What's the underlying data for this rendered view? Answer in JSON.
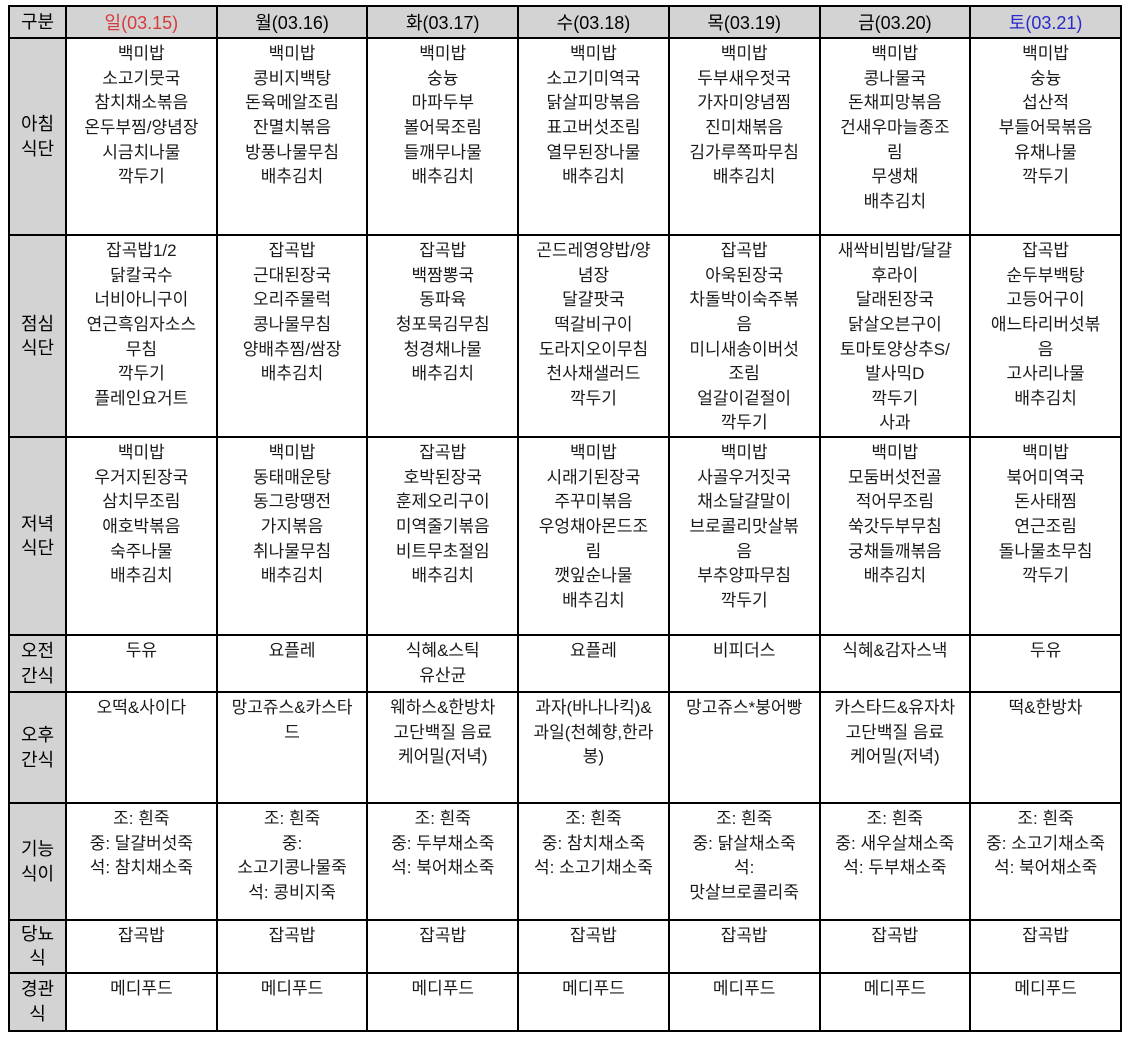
{
  "colors": {
    "sunday_header": "#d43c3c",
    "saturday_header": "#2929cc",
    "header_background": "#d3d3d3",
    "border": "#000000"
  },
  "table": {
    "corner": "구분",
    "day_headers": [
      "일(03.15)",
      "월(03.16)",
      "화(03.17)",
      "수(03.18)",
      "목(03.19)",
      "금(03.20)",
      "토(03.21)"
    ],
    "rows": [
      {
        "label": "아침\n식단",
        "cells": [
          "백미밥\n소고기뭇국\n참치채소볶음\n온두부찜/양념장\n시금치나물\n깍두기",
          "백미밥\n콩비지백탕\n돈육메알조림\n잔멸치볶음\n방풍나물무침\n배추김치",
          "백미밥\n숭늉\n마파두부\n볼어묵조림\n들깨무나물\n배추김치",
          "백미밥\n소고기미역국\n닭살피망볶음\n표고버섯조림\n열무된장나물\n배추김치",
          "백미밥\n두부새우젓국\n가자미양념찜\n진미채볶음\n김가루쪽파무침\n배추김치",
          "백미밥\n콩나물국\n돈채피망볶음\n건새우마늘종조\n림\n무생채\n배추김치",
          "백미밥\n숭늉\n섭산적\n부들어묵볶음\n유채나물\n깍두기"
        ]
      },
      {
        "label": "점심\n식단",
        "cells": [
          "잡곡밥1/2\n닭칼국수\n너비아니구이\n연근흑임자소스\n무침\n깍두기\n플레인요거트",
          "잡곡밥\n근대된장국\n오리주물럭\n콩나물무침\n양배추찜/쌈장\n배추김치",
          "잡곡밥\n백짬뽕국\n동파육\n청포묵김무침\n청경채나물\n배추김치",
          "곤드레영양밥/양\n념장\n달걀팟국\n떡갈비구이\n도라지오이무침\n천사채샐러드\n깍두기",
          "잡곡밥\n아욱된장국\n차돌박이숙주볶\n음\n미니새송이버섯\n조림\n얼갈이겉절이\n깍두기",
          "새싹비빔밥/달걀\n후라이\n달래된장국\n닭살오븐구이\n토마토양상추S/\n발사믹D\n깍두기\n사과",
          "잡곡밥\n순두부백탕\n고등어구이\n애느타리버섯볶\n음\n고사리나물\n배추김치"
        ]
      },
      {
        "label": "저녁\n식단",
        "cells": [
          "백미밥\n우거지된장국\n삼치무조림\n애호박볶음\n숙주나물\n배추김치",
          "백미밥\n동태매운탕\n동그랑땡전\n가지볶음\n취나물무침\n배추김치",
          "잡곡밥\n호박된장국\n훈제오리구이\n미역줄기볶음\n비트무초절임\n배추김치",
          "백미밥\n시래기된장국\n주꾸미볶음\n우엉채아몬드조\n림\n깻잎순나물\n배추김치",
          "백미밥\n사골우거짓국\n채소달걀말이\n브로콜리맛살볶\n음\n부추양파무침\n깍두기",
          "백미밥\n모둠버섯전골\n적어무조림\n쑥갓두부무침\n궁채들깨볶음\n배추김치",
          "백미밥\n북어미역국\n돈사태찜\n연근조림\n돌나물초무침\n깍두기"
        ]
      },
      {
        "label": "오전\n간식",
        "cells": [
          "두유",
          "요플레",
          "식혜&스틱\n유산균",
          "요플레",
          "비피더스",
          "식혜&감자스낵",
          "두유"
        ]
      },
      {
        "label": "오후\n간식",
        "cells": [
          "오떡&사이다",
          "망고쥬스&카스타\n드",
          "웨하스&한방차\n고단백질 음료\n케어밀(저녁)",
          "과자(바나나킥)&\n과일(천혜향,한라\n봉)",
          "망고쥬스*붕어빵",
          "카스타드&유자차\n고단백질 음료\n케어밀(저녁)",
          "떡&한방차"
        ]
      },
      {
        "label": "기능\n식이",
        "cells": [
          "조: 흰죽\n중: 달걀버섯죽\n석: 참치채소죽",
          "조: 흰죽\n중:\n소고기콩나물죽\n석: 콩비지죽",
          "조: 흰죽\n중: 두부채소죽\n석: 북어채소죽",
          "조: 흰죽\n중: 참치채소죽\n석: 소고기채소죽",
          "조: 흰죽\n중: 닭살채소죽\n석:\n맛살브로콜리죽",
          "조: 흰죽\n중: 새우살채소죽\n석: 두부채소죽",
          "조: 흰죽\n중: 소고기채소죽\n석: 북어채소죽"
        ]
      },
      {
        "label": "당뇨\n식",
        "cells": [
          "잡곡밥",
          "잡곡밥",
          "잡곡밥",
          "잡곡밥",
          "잡곡밥",
          "잡곡밥",
          "잡곡밥"
        ]
      },
      {
        "label": "경관\n식",
        "cells": [
          "메디푸드",
          "메디푸드",
          "메디푸드",
          "메디푸드",
          "메디푸드",
          "메디푸드",
          "메디푸드"
        ]
      }
    ]
  }
}
